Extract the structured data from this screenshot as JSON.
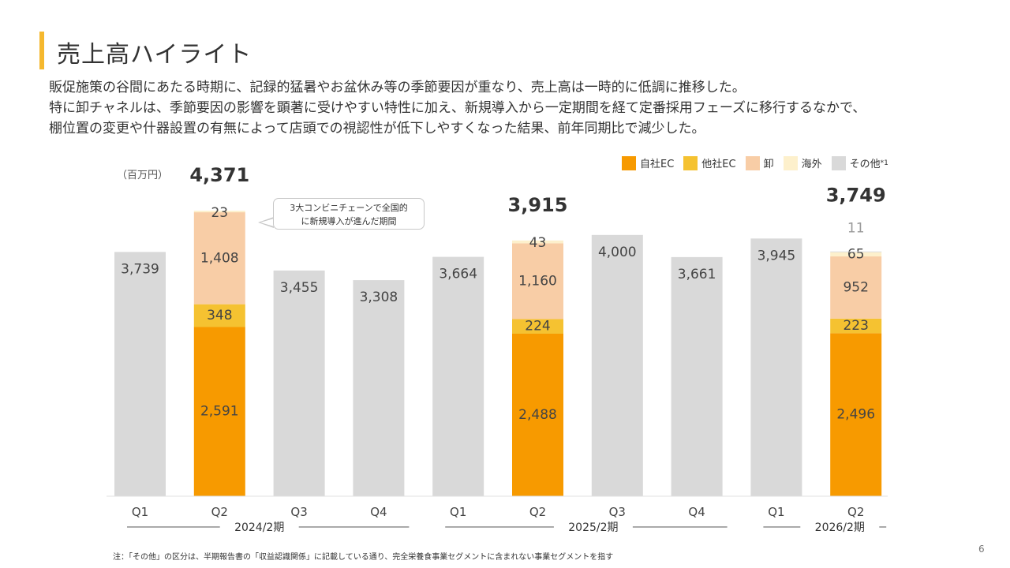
{
  "title": "売上高ハイライト",
  "description": [
    "販促施策の谷間にあたる時期に、記録的猛暑やお盆休み等の季節要因が重なり、売上高は一時的に低調に推移した。",
    "特に卸チャネルは、季節要因の影響を顕著に受けやすい特性に加え、新規導入から一定期間を経て定番採用フェーズに移行するなかで、",
    "棚位置の変更や什器設置の有無によって店頭での視認性が低下しやすくなった結果、前年同期比で減少した。"
  ],
  "unit": "（百万円）",
  "legend": [
    {
      "label": "自社EC",
      "color": "#f79a00"
    },
    {
      "label": "他社EC",
      "color": "#f5c231"
    },
    {
      "label": "卸",
      "color": "#f8cda6"
    },
    {
      "label": "海外",
      "color": "#fdf0cc"
    },
    {
      "label": "その他",
      "sup": "*1",
      "color": "#d9d9d9"
    }
  ],
  "callout": "3大コンビニチェーンで全国的\nに新規導入が進んだ期間",
  "footnote": "注：「その他」の区分は、半期報告書の「収益認識関係」に記載している通り、完全栄養食事業セグメントに含まれない事業セグメントを指す",
  "page_number": "6",
  "chart_data": {
    "type": "bar",
    "stacked": true,
    "categories": [
      "Q1",
      "Q2",
      "Q3",
      "Q4",
      "Q1",
      "Q2",
      "Q3",
      "Q4",
      "Q1",
      "Q2"
    ],
    "groups": [
      {
        "label": "2024/2期",
        "quarters": [
          "Q1",
          "Q2",
          "Q3",
          "Q4"
        ]
      },
      {
        "label": "2025/2期",
        "quarters": [
          "Q1",
          "Q2",
          "Q3",
          "Q4"
        ]
      },
      {
        "label": "2026/2期",
        "quarters": [
          "Q1",
          "Q2"
        ]
      }
    ],
    "series": [
      {
        "name": "自社EC",
        "values": [
          null,
          2591,
          null,
          null,
          null,
          2488,
          null,
          null,
          null,
          2496
        ]
      },
      {
        "name": "他社EC",
        "values": [
          null,
          348,
          null,
          null,
          null,
          224,
          null,
          null,
          null,
          223
        ]
      },
      {
        "name": "卸",
        "values": [
          null,
          1408,
          null,
          null,
          null,
          1160,
          null,
          null,
          null,
          952
        ]
      },
      {
        "name": "海外",
        "values": [
          null,
          23,
          null,
          null,
          null,
          43,
          null,
          null,
          null,
          65
        ]
      },
      {
        "name": "その他",
        "values": [
          3739,
          null,
          3455,
          3308,
          3664,
          null,
          4000,
          3661,
          3945,
          11
        ]
      }
    ],
    "totals": [
      null,
      "4,371",
      null,
      null,
      null,
      "3,915",
      null,
      null,
      null,
      "3,749"
    ],
    "ylim": [
      0,
      4400
    ]
  }
}
